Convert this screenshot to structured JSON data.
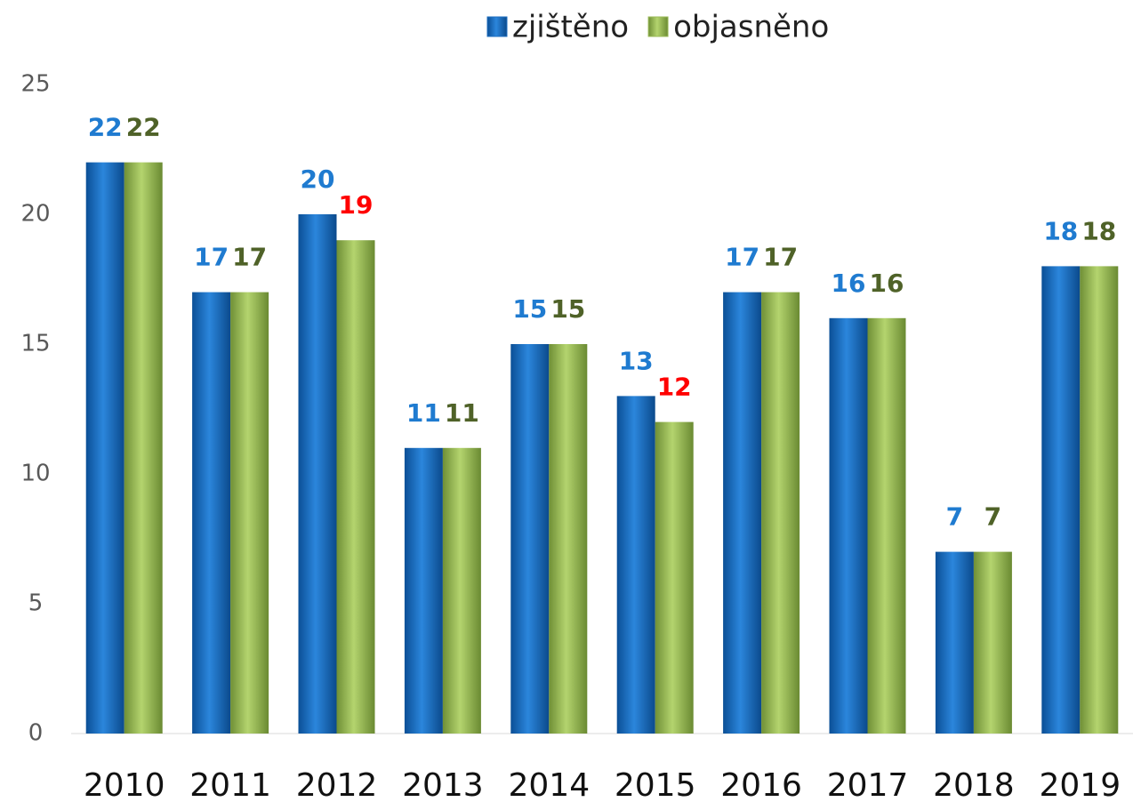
{
  "chart_data": {
    "type": "bar",
    "categories": [
      "2010",
      "2011",
      "2012",
      "2013",
      "2014",
      "2015",
      "2016",
      "2017",
      "2018",
      "2019"
    ],
    "series": [
      {
        "name": "zjištěno",
        "color": "#1f6fc0",
        "label_colors": [
          "#1f7bd0",
          "#1f7bd0",
          "#1f7bd0",
          "#1f7bd0",
          "#1f7bd0",
          "#1f7bd0",
          "#1f7bd0",
          "#1f7bd0",
          "#1f7bd0",
          "#1f7bd0"
        ],
        "values": [
          22,
          17,
          20,
          11,
          15,
          13,
          17,
          16,
          7,
          18
        ]
      },
      {
        "name": "objasněno",
        "color": "#9bbb59",
        "label_colors": [
          "#4f6228",
          "#4f6228",
          "#ff0000",
          "#4f6228",
          "#4f6228",
          "#ff0000",
          "#4f6228",
          "#4f6228",
          "#4f6228",
          "#4f6228"
        ],
        "values": [
          22,
          17,
          19,
          11,
          15,
          12,
          17,
          16,
          7,
          18
        ]
      }
    ],
    "ylim": [
      0,
      25
    ],
    "yticks": [
      0,
      5,
      10,
      15,
      20,
      25
    ],
    "grid": false,
    "legend": "top"
  }
}
